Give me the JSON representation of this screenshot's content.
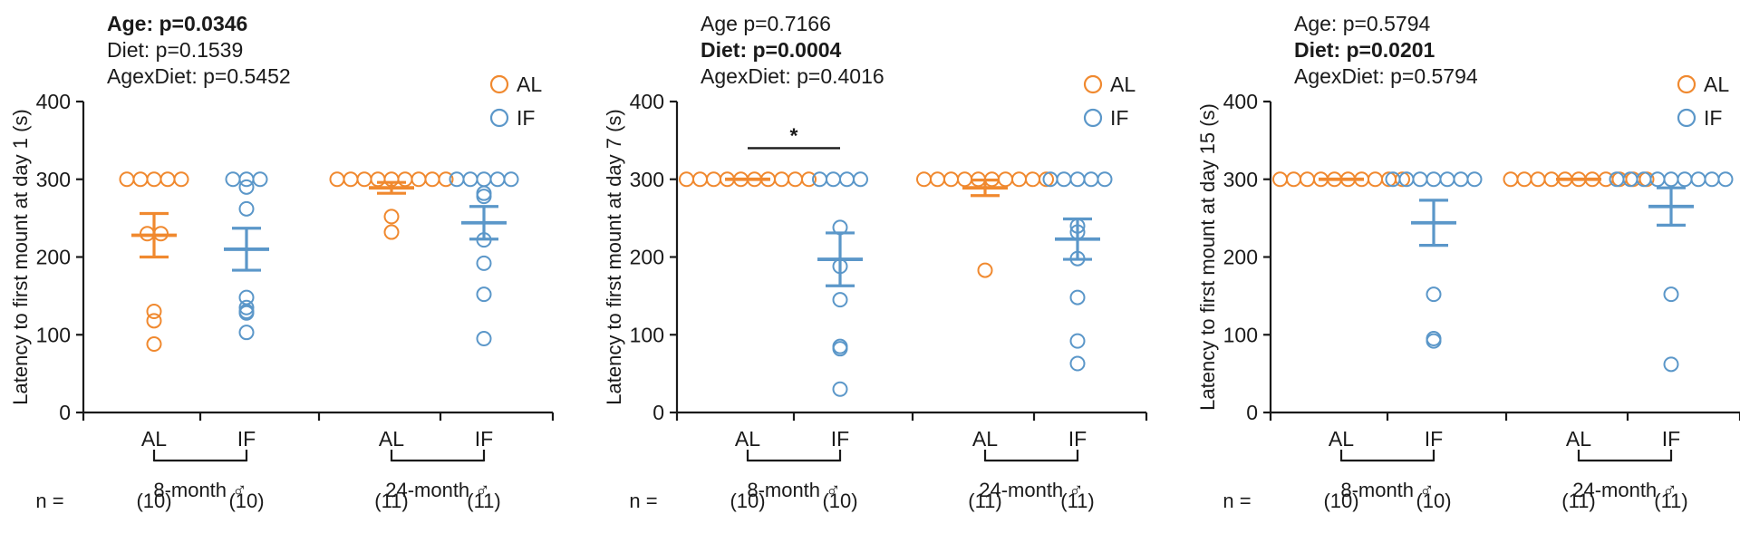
{
  "colors": {
    "AL": "#f0892f",
    "IF": "#5b97c9",
    "axis": "#1a1a1a"
  },
  "chart_data": [
    {
      "type": "scatter",
      "ylabel": "Latency to first mount at day 1 (s)",
      "ylim": [
        0,
        400
      ],
      "yticks": [
        0,
        100,
        200,
        300,
        400
      ],
      "stats": [
        {
          "text": "Age: p=0.0346",
          "bold": true
        },
        {
          "text": "Diet: p=0.1539",
          "bold": false
        },
        {
          "text": "AgexDiet: p=0.5452",
          "bold": false
        }
      ],
      "legend": [
        "AL",
        "IF"
      ],
      "n_label": "n =",
      "significance": [],
      "groups": [
        {
          "label": "8-month ♂",
          "conditions": [
            {
              "label": "AL",
              "diet": "AL",
              "n": "(10)",
              "mean": 228,
              "sem": 28,
              "points": [
                300,
                300,
                300,
                300,
                300,
                230,
                230,
                130,
                118,
                88
              ]
            },
            {
              "label": "IF",
              "diet": "IF",
              "n": "(10)",
              "mean": 210,
              "sem": 27,
              "points": [
                300,
                300,
                300,
                290,
                262,
                148,
                135,
                130,
                128,
                103
              ]
            }
          ]
        },
        {
          "label": "24-month ♂",
          "conditions": [
            {
              "label": "AL",
              "diet": "AL",
              "n": "(11)",
              "mean": 289,
              "sem": 7,
              "points": [
                300,
                300,
                300,
                300,
                300,
                300,
                300,
                300,
                300,
                252,
                232
              ]
            },
            {
              "label": "IF",
              "diet": "IF",
              "n": "(11)",
              "mean": 244,
              "sem": 21,
              "points": [
                300,
                300,
                300,
                300,
                300,
                282,
                278,
                222,
                192,
                152,
                95
              ]
            }
          ]
        }
      ]
    },
    {
      "type": "scatter",
      "ylabel": "Latency to first mount at day 7 (s)",
      "ylim": [
        0,
        400
      ],
      "yticks": [
        0,
        100,
        200,
        300,
        400
      ],
      "stats": [
        {
          "text": "Age p=0.7166",
          "bold": false
        },
        {
          "text": "Diet: p=0.0004",
          "bold": true
        },
        {
          "text": "AgexDiet: p=0.4016",
          "bold": false
        }
      ],
      "legend": [
        "AL",
        "IF"
      ],
      "n_label": "n =",
      "significance": [
        {
          "group": 0,
          "label": "*",
          "value": 340
        }
      ],
      "groups": [
        {
          "label": "8-month ♂",
          "conditions": [
            {
              "label": "AL",
              "diet": "AL",
              "n": "(10)",
              "mean": 300,
              "sem": 0,
              "points": [
                300,
                300,
                300,
                300,
                300,
                300,
                300,
                300,
                300,
                300
              ]
            },
            {
              "label": "IF",
              "diet": "IF",
              "n": "(10)",
              "mean": 197,
              "sem": 34,
              "points": [
                300,
                300,
                300,
                300,
                238,
                188,
                145,
                85,
                82,
                30
              ]
            }
          ]
        },
        {
          "label": "24-month ♂",
          "conditions": [
            {
              "label": "AL",
              "diet": "AL",
              "n": "(11)",
              "mean": 289,
              "sem": 10,
              "points": [
                300,
                300,
                300,
                300,
                300,
                300,
                300,
                300,
                300,
                300,
                183
              ]
            },
            {
              "label": "IF",
              "diet": "IF",
              "n": "(11)",
              "mean": 223,
              "sem": 26,
              "points": [
                300,
                300,
                300,
                300,
                300,
                240,
                232,
                198,
                148,
                92,
                63
              ]
            }
          ]
        }
      ]
    },
    {
      "type": "scatter",
      "ylabel": "Latency to first mount at day 15 (s)",
      "ylim": [
        0,
        400
      ],
      "yticks": [
        0,
        100,
        200,
        300,
        400
      ],
      "stats": [
        {
          "text": "Age: p=0.5794",
          "bold": false
        },
        {
          "text": "Diet: p=0.0201",
          "bold": true
        },
        {
          "text": "AgexDiet: p=0.5794",
          "bold": false
        }
      ],
      "legend": [
        "AL",
        "IF"
      ],
      "n_label": "n =",
      "significance": [],
      "groups": [
        {
          "label": "8-month ♂",
          "conditions": [
            {
              "label": "AL",
              "diet": "AL",
              "n": "(10)",
              "mean": 300,
              "sem": 0,
              "points": [
                300,
                300,
                300,
                300,
                300,
                300,
                300,
                300,
                300,
                300
              ]
            },
            {
              "label": "IF",
              "diet": "IF",
              "n": "(10)",
              "mean": 244,
              "sem": 29,
              "points": [
                300,
                300,
                300,
                300,
                300,
                300,
                300,
                152,
                95,
                92
              ]
            }
          ]
        },
        {
          "label": "24-month ♂",
          "conditions": [
            {
              "label": "AL",
              "diet": "AL",
              "n": "(11)",
              "mean": 300,
              "sem": 0,
              "points": [
                300,
                300,
                300,
                300,
                300,
                300,
                300,
                300,
                300,
                300,
                300
              ]
            },
            {
              "label": "IF",
              "diet": "IF",
              "n": "(11)",
              "mean": 265,
              "sem": 24,
              "points": [
                300,
                300,
                300,
                300,
                300,
                300,
                300,
                300,
                300,
                152,
                62
              ]
            }
          ]
        }
      ]
    }
  ]
}
